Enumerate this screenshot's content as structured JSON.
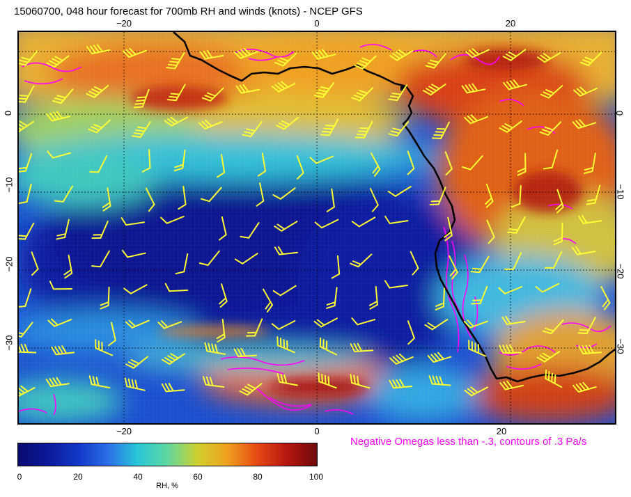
{
  "title": "15060700, 048 hour forecast for 700mb RH and winds (knots) - NCEP GFS",
  "map": {
    "lon_ticks_top": [
      "−20",
      "0",
      "20"
    ],
    "lon_ticks_bottom": [
      "−20",
      "0",
      "20"
    ],
    "lat_ticks_left": [
      "0",
      "−10",
      "−20",
      "−30"
    ],
    "lat_ticks_right": [
      "0",
      "−10",
      "−20",
      "−30"
    ],
    "colors": {
      "coastline": "#000000",
      "wind_barbs": "#ffff33",
      "omega_contours": "#ff00ff",
      "graticule": "#000000"
    }
  },
  "legend_note": "Negative Omegas less than -.3, contours of .3 Pa/s",
  "colorbar": {
    "labels": [
      "0",
      "20",
      "40",
      "60",
      "80",
      "100"
    ],
    "title": "RH, %"
  }
}
